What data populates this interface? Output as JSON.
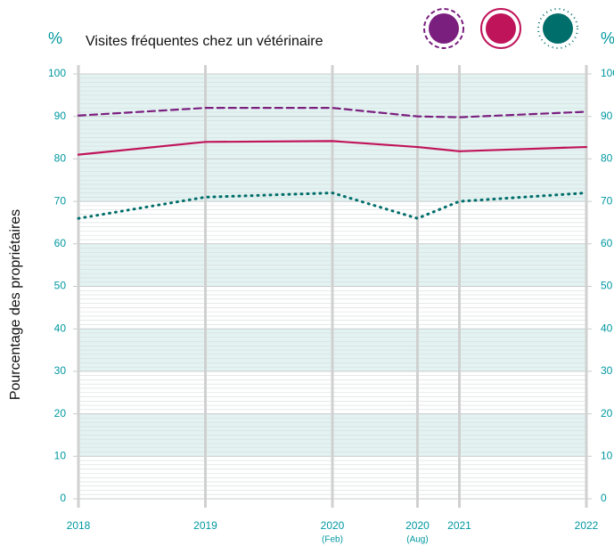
{
  "chart_data": {
    "type": "line",
    "title": "Visites fréquentes chez un vétérinaire",
    "ylabel": "Pourcentage des propriétaires",
    "yunit": "%",
    "x": [
      2018,
      2019,
      2020,
      2020.67,
      2021,
      2022
    ],
    "xticks": [
      2018,
      2019,
      2020,
      {
        "value": 2020.67,
        "label": "2020"
      },
      2021,
      2022
    ],
    "xtick_sublabels": [
      null,
      null,
      "(Feb)",
      "(Aug)",
      null,
      null
    ],
    "xlim": [
      2018,
      2022
    ],
    "ylim": [
      0,
      100
    ],
    "yticks": [
      0,
      10,
      20,
      30,
      40,
      50,
      60,
      70,
      80,
      90,
      100
    ],
    "series": [
      {
        "color": "#7b1f7f",
        "dash": "dashed",
        "values": [
          90.2,
          92,
          92,
          90,
          89.8,
          91.1
        ]
      },
      {
        "color": "#c0145a",
        "dash": "solid",
        "values": [
          81,
          84,
          84.2,
          82.8,
          81.8,
          82.8
        ]
      },
      {
        "color": "#006e6a",
        "dash": "dotted",
        "values": [
          66,
          71,
          72,
          66,
          70,
          72
        ]
      }
    ]
  }
}
